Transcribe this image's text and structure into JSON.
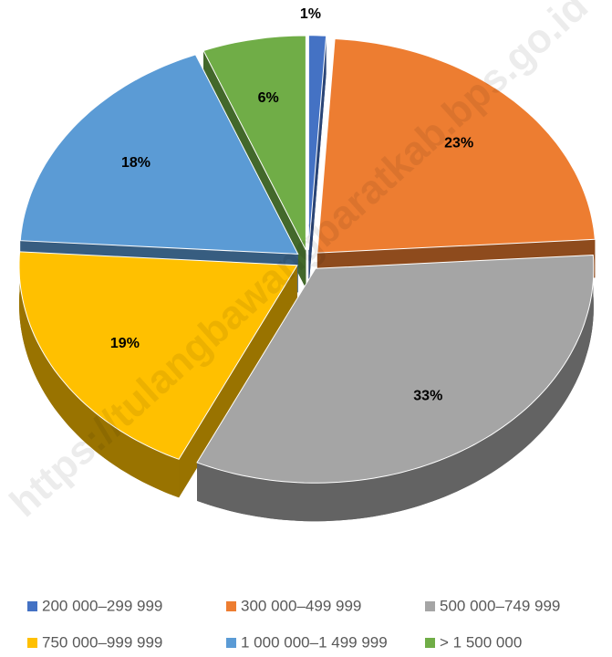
{
  "chart_data": {
    "type": "pie",
    "categories": [
      "200 000–299 999",
      "300 000–499 999",
      "500 000–749 999",
      "750 000–999 999",
      "1 000 000–1 499 999",
      "> 1 500 000"
    ],
    "values": [
      1,
      23,
      33,
      19,
      18,
      6
    ],
    "value_labels": [
      "1%",
      "23%",
      "33%",
      "19%",
      "18%",
      "6%"
    ],
    "colors": [
      "#4472c4",
      "#ed7d31",
      "#a5a5a5",
      "#ffc000",
      "#5b9bd5",
      "#70ad47"
    ],
    "watermark": "https://tulangbawangbaratkab.bps.go.id",
    "legend": "bottom"
  }
}
